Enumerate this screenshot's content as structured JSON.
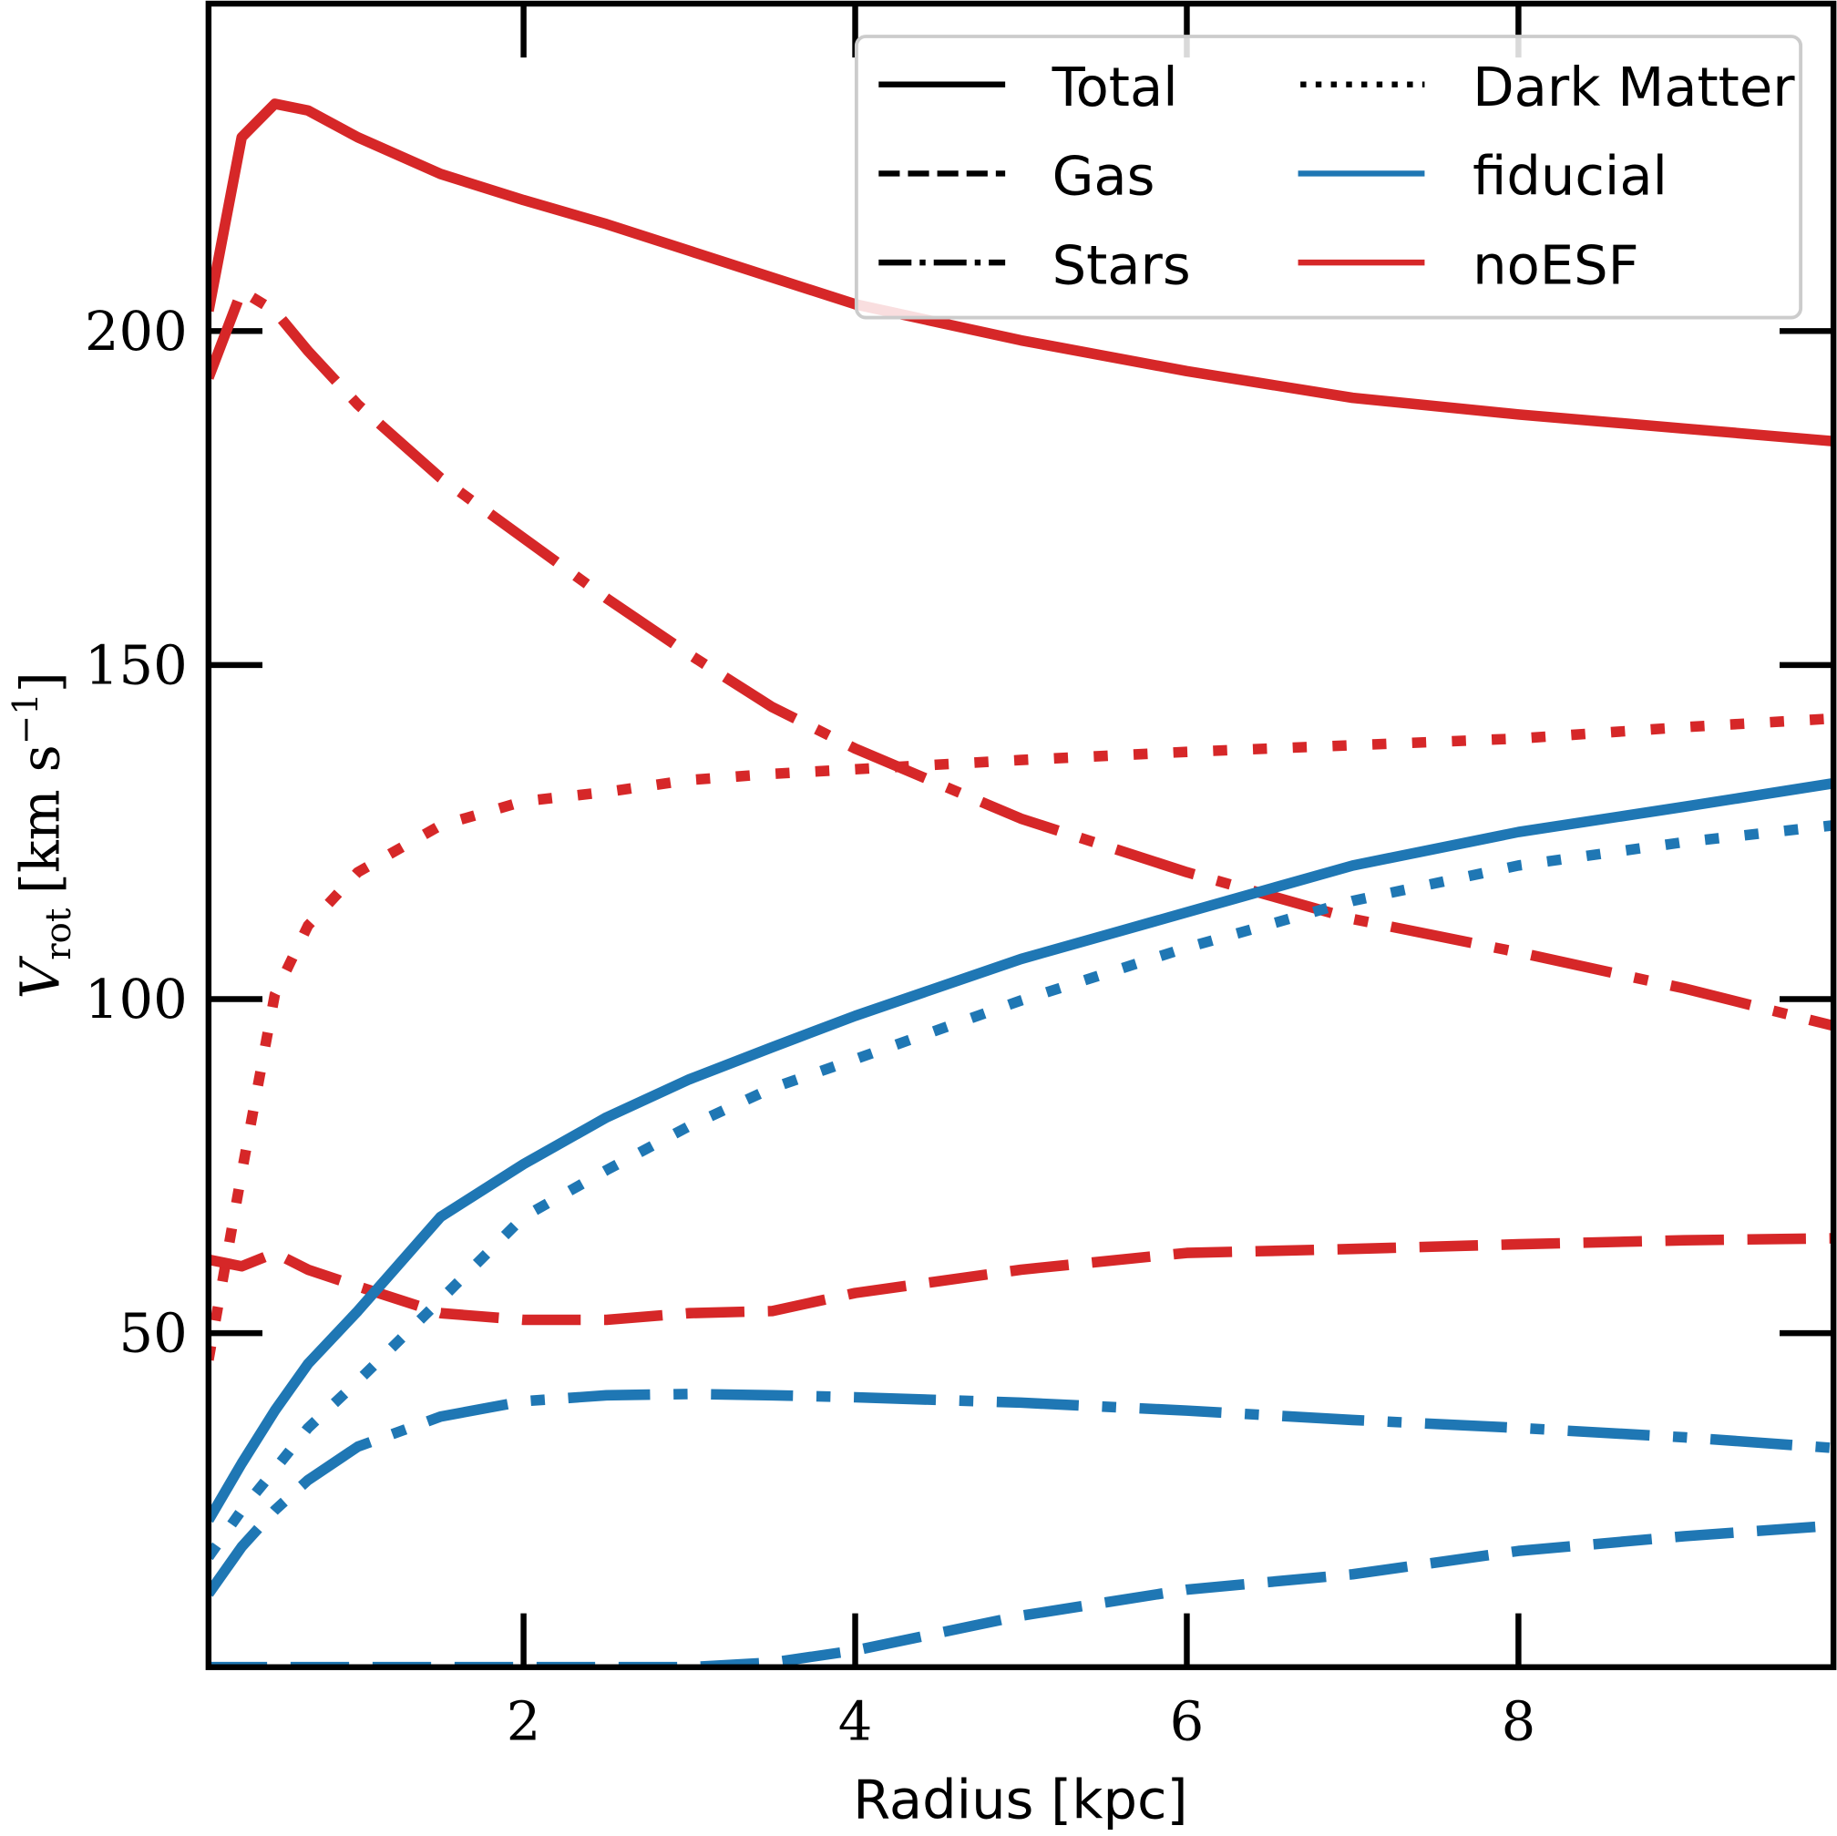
{
  "chart_data": {
    "type": "line",
    "title": "",
    "xlabel": "Radius [kpc]",
    "ylabel_main": "V",
    "ylabel_sub": "rot",
    "ylabel_units": "[km s",
    "ylabel_exp": "−1",
    "ylabel_close": "]",
    "xlim": [
      0.1,
      9.9
    ],
    "ylim": [
      0,
      249
    ],
    "xticks": [
      "2",
      "4",
      "6",
      "8"
    ],
    "xtick_values": [
      2,
      4,
      6,
      8
    ],
    "yticks": [
      "50",
      "100",
      "150",
      "200"
    ],
    "ytick_values": [
      50,
      100,
      150,
      200
    ],
    "grid": false,
    "legend_placement": "top-right",
    "legend": {
      "styles": [
        {
          "label": "Total",
          "dash": "solid"
        },
        {
          "label": "Gas",
          "dash": "dashed"
        },
        {
          "label": "Stars",
          "dash": "dashdot"
        },
        {
          "label": "Dark Matter",
          "dash": "dotted"
        }
      ],
      "models": [
        {
          "label": "fiducial",
          "color": "#1f77b4"
        },
        {
          "label": "noESF",
          "color": "#d62728"
        }
      ]
    },
    "x": [
      0.1,
      0.3,
      0.5,
      0.7,
      1,
      1.5,
      2,
      2.5,
      3,
      3.5,
      4,
      5,
      6,
      7,
      8,
      9,
      9.9
    ],
    "series": [
      {
        "name": "noESF Total",
        "model": "noESF",
        "component": "Total",
        "color": "#d62728",
        "dash": "solid",
        "values": [
          203,
          229,
          234,
          233,
          229,
          223.5,
          219.6,
          216,
          212,
          208,
          204,
          198.6,
          194,
          190,
          187.5,
          185.4,
          183.5
        ]
      },
      {
        "name": "noESF Stars",
        "model": "noESF",
        "component": "Stars",
        "color": "#d62728",
        "dash": "dashdot",
        "values": [
          193,
          206,
          203,
          197,
          189,
          178,
          169,
          160,
          151.6,
          143.7,
          137.5,
          127,
          119,
          112,
          107,
          101.6,
          96
        ]
      },
      {
        "name": "noESF Dark Matter",
        "model": "noESF",
        "component": "Dark Matter",
        "color": "#d62728",
        "dash": "dotted",
        "values": [
          46,
          74,
          100.7,
          111,
          119,
          126,
          129.6,
          131,
          132.8,
          133.7,
          134.4,
          135.8,
          137,
          138,
          139,
          140.7,
          142
        ]
      },
      {
        "name": "noESF Gas",
        "model": "noESF",
        "component": "Gas",
        "color": "#d62728",
        "dash": "dashed",
        "values": [
          61,
          60,
          62,
          59.5,
          57,
          53,
          52,
          52,
          53,
          53.3,
          56,
          59.5,
          62,
          62.6,
          63.3,
          63.9,
          64.2
        ]
      },
      {
        "name": "fiducial Total",
        "model": "fiducial",
        "component": "Total",
        "color": "#1f77b4",
        "dash": "solid",
        "values": [
          22,
          30.5,
          38.4,
          45.4,
          53.3,
          67.4,
          75.3,
          82.3,
          88,
          92.8,
          97.5,
          106,
          113,
          120,
          125,
          128.8,
          132.3
        ]
      },
      {
        "name": "fiducial Dark Matter",
        "model": "fiducial",
        "component": "Dark Matter",
        "color": "#1f77b4",
        "dash": "dotted",
        "values": [
          16.5,
          23.5,
          29.6,
          35.8,
          42.8,
          55,
          67.4,
          74.4,
          81,
          86.7,
          91,
          99.8,
          107.7,
          114.7,
          120,
          123.5,
          126
        ]
      },
      {
        "name": "fiducial Stars",
        "model": "fiducial",
        "component": "Stars",
        "color": "#1f77b4",
        "dash": "dashdot",
        "values": [
          11,
          18,
          23.5,
          28,
          33,
          37.5,
          39.8,
          40.7,
          40.9,
          40.7,
          40.4,
          39.6,
          38.4,
          37,
          35.8,
          34.4,
          32.8
        ]
      },
      {
        "name": "fiducial Gas",
        "model": "fiducial",
        "component": "Gas",
        "color": "#1f77b4",
        "dash": "dashed",
        "values": [
          0,
          0,
          0,
          0,
          0,
          0,
          0,
          0,
          0,
          0.7,
          2.5,
          7.7,
          11.6,
          13.9,
          17.4,
          19.6,
          21.2
        ]
      }
    ]
  }
}
